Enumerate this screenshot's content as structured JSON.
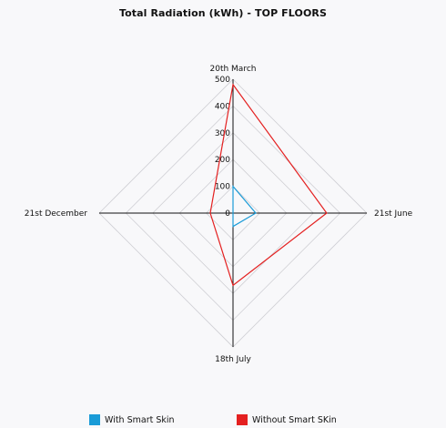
{
  "chart_data": {
    "type": "radar",
    "title": "Total Radiation (kWh) - TOP FLOORS",
    "axes": [
      "20th March",
      "21st June",
      "18th July",
      "21st December"
    ],
    "rlim": [
      0,
      500
    ],
    "ticks": [
      "0",
      "100",
      "200",
      "300",
      "400",
      "500"
    ],
    "tick_values": [
      0,
      100,
      200,
      300,
      400,
      500
    ],
    "grid": true,
    "legend_position": "bottom",
    "series": [
      {
        "name": "With Smart Skin",
        "color": "#1a9bd7",
        "values": [
          100,
          85,
          50,
          0
        ]
      },
      {
        "name": "Without Smart SKin",
        "color": "#e42020",
        "values": [
          480,
          350,
          270,
          85
        ]
      }
    ]
  }
}
